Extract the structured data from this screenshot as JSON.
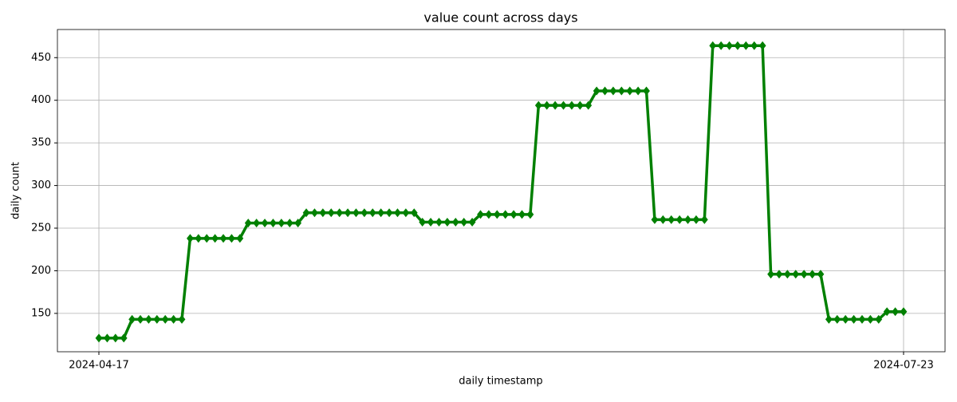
{
  "chart_data": {
    "type": "line",
    "title": "value count across days",
    "xlabel": "daily timestamp",
    "ylabel": "daily count",
    "x": [
      "2024-04-17",
      "2024-04-18",
      "2024-04-19",
      "2024-04-20",
      "2024-04-21",
      "2024-04-22",
      "2024-04-23",
      "2024-04-24",
      "2024-04-25",
      "2024-04-26",
      "2024-04-27",
      "2024-04-28",
      "2024-04-29",
      "2024-04-30",
      "2024-05-01",
      "2024-05-02",
      "2024-05-03",
      "2024-05-04",
      "2024-05-05",
      "2024-05-06",
      "2024-05-07",
      "2024-05-08",
      "2024-05-09",
      "2024-05-10",
      "2024-05-11",
      "2024-05-12",
      "2024-05-13",
      "2024-05-14",
      "2024-05-15",
      "2024-05-16",
      "2024-05-17",
      "2024-05-18",
      "2024-05-19",
      "2024-05-20",
      "2024-05-21",
      "2024-05-22",
      "2024-05-23",
      "2024-05-24",
      "2024-05-25",
      "2024-05-26",
      "2024-05-27",
      "2024-05-28",
      "2024-05-29",
      "2024-05-30",
      "2024-05-31",
      "2024-06-01",
      "2024-06-02",
      "2024-06-03",
      "2024-06-04",
      "2024-06-05",
      "2024-06-06",
      "2024-06-07",
      "2024-06-08",
      "2024-06-09",
      "2024-06-10",
      "2024-06-11",
      "2024-06-12",
      "2024-06-13",
      "2024-06-14",
      "2024-06-15",
      "2024-06-16",
      "2024-06-17",
      "2024-06-18",
      "2024-06-19",
      "2024-06-20",
      "2024-06-21",
      "2024-06-22",
      "2024-06-23",
      "2024-06-24",
      "2024-06-25",
      "2024-06-26",
      "2024-06-27",
      "2024-06-28",
      "2024-06-29",
      "2024-06-30",
      "2024-07-01",
      "2024-07-02",
      "2024-07-03",
      "2024-07-04",
      "2024-07-05",
      "2024-07-06",
      "2024-07-07",
      "2024-07-08",
      "2024-07-09",
      "2024-07-10",
      "2024-07-11",
      "2024-07-12",
      "2024-07-13",
      "2024-07-14",
      "2024-07-15",
      "2024-07-16",
      "2024-07-17",
      "2024-07-18",
      "2024-07-19",
      "2024-07-20",
      "2024-07-21",
      "2024-07-22",
      "2024-07-23"
    ],
    "series": [
      {
        "color": "#008000",
        "values": [
          121,
          121,
          121,
          121,
          143,
          143,
          143,
          143,
          143,
          143,
          143,
          238,
          238,
          238,
          238,
          238,
          238,
          238,
          256,
          256,
          256,
          256,
          256,
          256,
          256,
          268,
          268,
          268,
          268,
          268,
          268,
          268,
          268,
          268,
          268,
          268,
          268,
          268,
          268,
          257,
          257,
          257,
          257,
          257,
          257,
          257,
          266,
          266,
          266,
          266,
          266,
          266,
          266,
          394,
          394,
          394,
          394,
          394,
          394,
          394,
          411,
          411,
          411,
          411,
          411,
          411,
          411,
          260,
          260,
          260,
          260,
          260,
          260,
          260,
          464,
          464,
          464,
          464,
          464,
          464,
          464,
          196,
          196,
          196,
          196,
          196,
          196,
          196,
          143,
          143,
          143,
          143,
          143,
          143,
          143,
          152,
          152,
          152
        ]
      }
    ],
    "xlim": [
      "2024-04-12",
      "2024-07-28"
    ],
    "xticks": [
      "2024-04-17",
      "2024-07-23"
    ],
    "ylim": [
      105,
      483
    ],
    "yticks": [
      150,
      200,
      250,
      300,
      350,
      400,
      450
    ],
    "grid": true
  }
}
